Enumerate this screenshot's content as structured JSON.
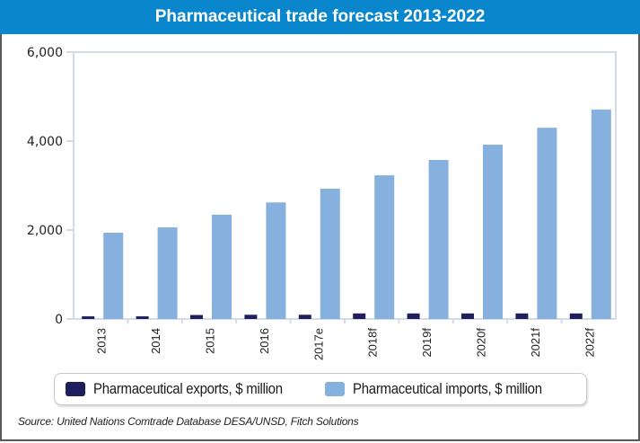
{
  "title": "Pharmaceutical trade forecast 2013-2022",
  "colors": {
    "title_bar": "#0a87cc",
    "exports": "#1f1f5e",
    "imports": "#86b0de",
    "axis": "#d3dbe6"
  },
  "chart_data": {
    "type": "bar",
    "title": "Pharmaceutical trade forecast 2013-2022",
    "xlabel": "",
    "ylabel": "",
    "ylim": [
      0,
      6000
    ],
    "yticks": [
      0,
      2000,
      4000,
      6000
    ],
    "ytick_labels": [
      "0",
      "2,000",
      "4,000",
      "6,000"
    ],
    "grid": false,
    "legend_position": "bottom",
    "categories": [
      "2013",
      "2014",
      "2015",
      "2016",
      "2017e",
      "2018f",
      "2019f",
      "2020f",
      "2021f",
      "2022f"
    ],
    "series": [
      {
        "name": "Pharmaceutical exports, $ million",
        "color": "#1f1f5e",
        "values": [
          60,
          60,
          90,
          95,
          95,
          125,
          125,
          125,
          125,
          125
        ]
      },
      {
        "name": "Pharmaceutical imports, $ million",
        "color": "#86b0de",
        "values": [
          1940,
          2060,
          2345,
          2620,
          2930,
          3230,
          3575,
          3920,
          4300,
          4710
        ]
      }
    ]
  },
  "legend": {
    "items": [
      {
        "label": "Pharmaceutical exports, $ million"
      },
      {
        "label": "Pharmaceutical imports, $ million"
      }
    ]
  },
  "source": "Source: United Nations Comtrade Database DESA/UNSD, Fitch Solutions"
}
